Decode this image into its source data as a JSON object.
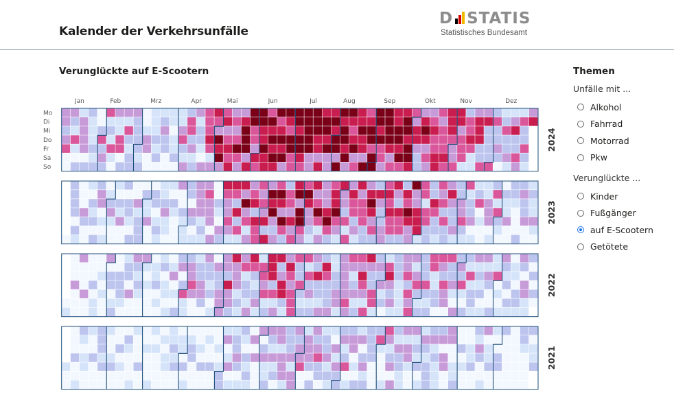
{
  "page": {
    "title": "Kalender der Verkehrsunfälle"
  },
  "logo": {
    "wordmark": "DESTATIS",
    "subtitle": "Statistisches Bundesamt"
  },
  "sidebar": {
    "title": "Themen",
    "group1": {
      "label": "Unfälle mit ...",
      "options": [
        "Alkohol",
        "Fahrrad",
        "Motorrad",
        "Pkw"
      ]
    },
    "group2": {
      "label": "Verunglückte ...",
      "options": [
        "Kinder",
        "Fußgänger",
        "auf E-Scootern",
        "Getötete"
      ]
    },
    "selected": "auf E-Scootern"
  },
  "chart_data": {
    "type": "heatmap",
    "title": "Verunglückte auf E-Scootern",
    "months": [
      "Jan",
      "Feb",
      "Mrz",
      "Apr",
      "Mai",
      "Jun",
      "Jul",
      "Aug",
      "Sep",
      "Okt",
      "Nov",
      "Dez"
    ],
    "weekdays": [
      "Mo",
      "Di",
      "Mi",
      "Do",
      "Fr",
      "Sa",
      "So"
    ],
    "years": [
      2024,
      2023,
      2022,
      2021
    ],
    "colors": [
      "#f3f8ff",
      "#d6e4fa",
      "#bdc5ef",
      "#c79ad8",
      "#d9579a",
      "#c81d4e",
      "#7a0018"
    ],
    "monthly_level": {
      "2024": [
        0.3,
        0.35,
        0.3,
        0.45,
        0.75,
        0.85,
        0.8,
        0.85,
        0.85,
        0.72,
        0.55,
        0.45
      ],
      "2023": [
        0.2,
        0.22,
        0.22,
        0.3,
        0.55,
        0.65,
        0.6,
        0.55,
        0.62,
        0.45,
        0.35,
        0.25
      ],
      "2022": [
        0.15,
        0.18,
        0.2,
        0.3,
        0.45,
        0.55,
        0.45,
        0.5,
        0.45,
        0.4,
        0.3,
        0.2
      ],
      "2021": [
        0.05,
        0.05,
        0.05,
        0.1,
        0.22,
        0.35,
        0.3,
        0.32,
        0.32,
        0.25,
        0.18,
        0.1
      ]
    }
  }
}
